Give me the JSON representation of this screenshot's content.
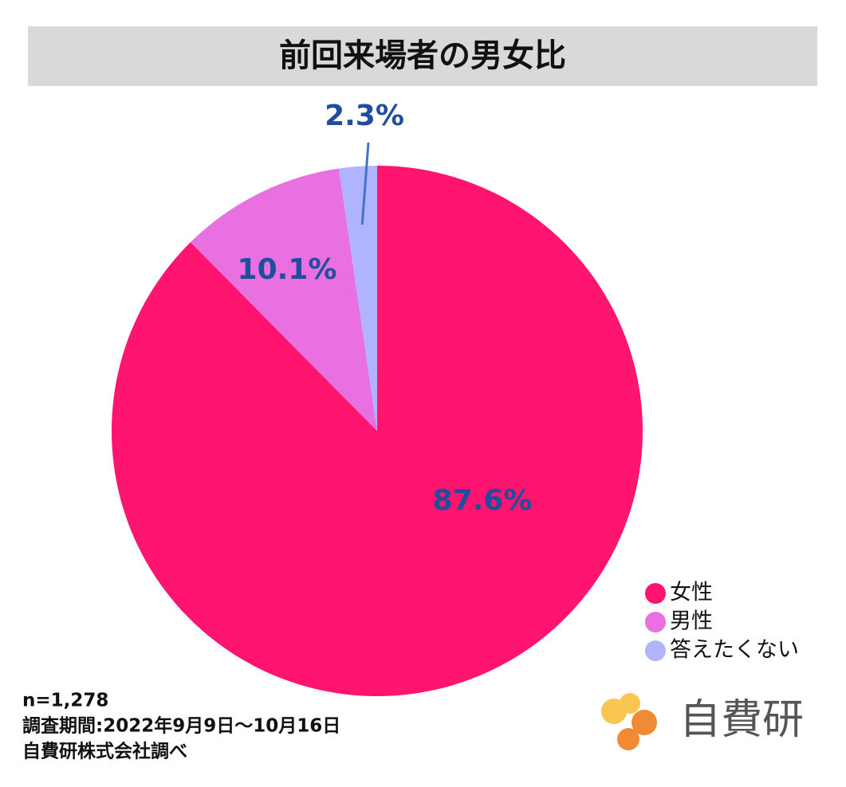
{
  "chart_data": {
    "type": "pie",
    "title": "前回来場者の男女比",
    "categories": [
      "女性",
      "男性",
      "答えたくない"
    ],
    "values": [
      87.6,
      10.1,
      2.3
    ],
    "value_labels": [
      "87.6%",
      "10.1%",
      "2.3%"
    ],
    "colors": [
      "#ff1470",
      "#e870e0",
      "#b0b4ff"
    ],
    "legend": "right",
    "notes": [
      "n=1,278",
      "調査期間:2022年9月9日〜10月16日",
      "自費研株式会社調べ"
    ]
  },
  "logo": "自費研"
}
